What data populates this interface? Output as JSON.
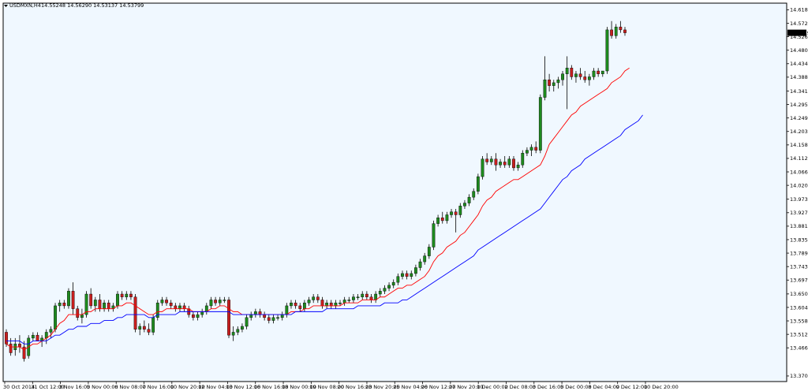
{
  "header": {
    "symbol": "USDMXN,H4",
    "ohlc": "14.55248 14.56290 14.53137 14.53799"
  },
  "current_price_label": "14.53799",
  "colors": {
    "background": "#f0f8ff",
    "frame": "#000000",
    "bull_candle": "#1e8a1e",
    "bear_candle": "#c81e1e",
    "wick": "#000000",
    "ma_fast": "#ff0000",
    "ma_slow": "#0000ff",
    "price_tag_bg": "#000000",
    "price_tag_fg": "#ffffff"
  },
  "chart_data": {
    "type": "candlestick",
    "title": "USDMXN,H4",
    "xlabel": "",
    "ylabel": "",
    "grid": false,
    "ylim": [
      13.352,
      14.641
    ],
    "y_ticks": [
      "14.61840",
      "14.57250",
      "14.52660",
      "14.48070",
      "14.43480",
      "14.38890",
      "14.34165",
      "14.29575",
      "14.24985",
      "14.20395",
      "14.15805",
      "14.11215",
      "14.06625",
      "14.02035",
      "13.97310",
      "13.92720",
      "13.88130",
      "13.83540",
      "13.78950",
      "13.74360",
      "13.69770",
      "13.65045",
      "13.60455",
      "13.55865",
      "13.51275",
      "13.46685",
      "13.37095"
    ],
    "x_labels": [
      "30 Oct 2014",
      "31 Oct 12:00",
      "3 Nov 16:00",
      "5 Nov 00:00",
      "6 Nov 08:00",
      "7 Nov 16:00",
      "10 Nov 20:00",
      "12 Nov 04:00",
      "13 Nov 12:00",
      "16 Nov 16:00",
      "18 Nov 00:00",
      "19 Nov 08:00",
      "20 Nov 16:00",
      "23 Nov 20:00",
      "25 Nov 04:00",
      "26 Nov 12:00",
      "27 Nov 20:00",
      "1 Dec 00:00",
      "2 Dec 08:00",
      "3 Dec 16:00",
      "5 Dec 00:00",
      "8 Dec 04:00",
      "9 Dec 12:00",
      "10 Dec 20:00"
    ],
    "candles": [
      [
        13.52,
        13.53,
        13.47,
        13.48
      ],
      [
        13.48,
        13.5,
        13.44,
        13.45
      ],
      [
        13.46,
        13.5,
        13.44,
        13.48
      ],
      [
        13.48,
        13.51,
        13.45,
        13.47
      ],
      [
        13.47,
        13.49,
        13.42,
        13.43
      ],
      [
        13.44,
        13.51,
        13.43,
        13.5
      ],
      [
        13.5,
        13.52,
        13.49,
        13.51
      ],
      [
        13.51,
        13.52,
        13.49,
        13.49
      ],
      [
        13.49,
        13.51,
        13.47,
        13.5
      ],
      [
        13.5,
        13.53,
        13.48,
        13.52
      ],
      [
        13.52,
        13.54,
        13.5,
        13.53
      ],
      [
        13.53,
        13.62,
        13.52,
        13.61
      ],
      [
        13.61,
        13.63,
        13.59,
        13.62
      ],
      [
        13.62,
        13.63,
        13.6,
        13.61
      ],
      [
        13.61,
        13.67,
        13.6,
        13.66
      ],
      [
        13.66,
        13.69,
        13.58,
        13.6
      ],
      [
        13.6,
        13.61,
        13.56,
        13.57
      ],
      [
        13.57,
        13.6,
        13.55,
        13.58
      ],
      [
        13.58,
        13.66,
        13.57,
        13.65
      ],
      [
        13.65,
        13.67,
        13.6,
        13.61
      ],
      [
        13.61,
        13.64,
        13.59,
        13.63
      ],
      [
        13.63,
        13.65,
        13.59,
        13.6
      ],
      [
        13.6,
        13.63,
        13.59,
        13.62
      ],
      [
        13.62,
        13.63,
        13.59,
        13.6
      ],
      [
        13.6,
        13.62,
        13.59,
        13.61
      ],
      [
        13.61,
        13.66,
        13.6,
        13.65
      ],
      [
        13.65,
        13.66,
        13.63,
        13.64
      ],
      [
        13.64,
        13.66,
        13.63,
        13.65
      ],
      [
        13.65,
        13.66,
        13.63,
        13.64
      ],
      [
        13.64,
        13.65,
        13.52,
        13.53
      ],
      [
        13.53,
        13.55,
        13.51,
        13.54
      ],
      [
        13.54,
        13.56,
        13.52,
        13.53
      ],
      [
        13.53,
        13.55,
        13.51,
        13.52
      ],
      [
        13.52,
        13.58,
        13.51,
        13.57
      ],
      [
        13.57,
        13.63,
        13.56,
        13.62
      ],
      [
        13.62,
        13.64,
        13.61,
        13.63
      ],
      [
        13.63,
        13.64,
        13.61,
        13.62
      ],
      [
        13.62,
        13.63,
        13.6,
        13.61
      ],
      [
        13.61,
        13.62,
        13.59,
        13.6
      ],
      [
        13.6,
        13.62,
        13.59,
        13.61
      ],
      [
        13.61,
        13.62,
        13.59,
        13.6
      ],
      [
        13.6,
        13.61,
        13.57,
        13.58
      ],
      [
        13.58,
        13.59,
        13.56,
        13.57
      ],
      [
        13.57,
        13.59,
        13.56,
        13.58
      ],
      [
        13.58,
        13.6,
        13.57,
        13.59
      ],
      [
        13.59,
        13.62,
        13.58,
        13.61
      ],
      [
        13.61,
        13.64,
        13.6,
        13.63
      ],
      [
        13.63,
        13.64,
        13.61,
        13.62
      ],
      [
        13.62,
        13.64,
        13.61,
        13.63
      ],
      [
        13.63,
        13.64,
        13.62,
        13.63
      ],
      [
        13.63,
        13.64,
        13.5,
        13.51
      ],
      [
        13.51,
        13.54,
        13.49,
        13.52
      ],
      [
        13.52,
        13.54,
        13.51,
        13.53
      ],
      [
        13.53,
        13.55,
        13.52,
        13.54
      ],
      [
        13.54,
        13.58,
        13.53,
        13.57
      ],
      [
        13.57,
        13.59,
        13.56,
        13.58
      ],
      [
        13.58,
        13.6,
        13.57,
        13.59
      ],
      [
        13.59,
        13.6,
        13.57,
        13.58
      ],
      [
        13.58,
        13.59,
        13.56,
        13.57
      ],
      [
        13.57,
        13.58,
        13.55,
        13.56
      ],
      [
        13.56,
        13.58,
        13.55,
        13.57
      ],
      [
        13.57,
        13.58,
        13.56,
        13.57
      ],
      [
        13.57,
        13.59,
        13.56,
        13.58
      ],
      [
        13.58,
        13.62,
        13.57,
        13.61
      ],
      [
        13.61,
        13.63,
        13.6,
        13.62
      ],
      [
        13.62,
        13.63,
        13.6,
        13.61
      ],
      [
        13.61,
        13.62,
        13.59,
        13.6
      ],
      [
        13.6,
        13.63,
        13.59,
        13.62
      ],
      [
        13.62,
        13.64,
        13.61,
        13.63
      ],
      [
        13.63,
        13.65,
        13.62,
        13.64
      ],
      [
        13.64,
        13.65,
        13.62,
        13.63
      ],
      [
        13.63,
        13.64,
        13.6,
        13.61
      ],
      [
        13.61,
        13.63,
        13.6,
        13.62
      ],
      [
        13.62,
        13.63,
        13.6,
        13.61
      ],
      [
        13.61,
        13.63,
        13.6,
        13.62
      ],
      [
        13.62,
        13.63,
        13.61,
        13.62
      ],
      [
        13.62,
        13.64,
        13.61,
        13.63
      ],
      [
        13.63,
        13.64,
        13.62,
        13.63
      ],
      [
        13.63,
        13.65,
        13.62,
        13.64
      ],
      [
        13.64,
        13.65,
        13.63,
        13.64
      ],
      [
        13.64,
        13.66,
        13.63,
        13.65
      ],
      [
        13.65,
        13.66,
        13.63,
        13.64
      ],
      [
        13.64,
        13.65,
        13.62,
        13.63
      ],
      [
        13.63,
        13.66,
        13.62,
        13.65
      ],
      [
        13.65,
        13.67,
        13.64,
        13.66
      ],
      [
        13.66,
        13.68,
        13.65,
        13.67
      ],
      [
        13.67,
        13.69,
        13.66,
        13.68
      ],
      [
        13.68,
        13.7,
        13.67,
        13.69
      ],
      [
        13.69,
        13.72,
        13.68,
        13.71
      ],
      [
        13.71,
        13.73,
        13.7,
        13.72
      ],
      [
        13.72,
        13.73,
        13.7,
        13.71
      ],
      [
        13.71,
        13.73,
        13.7,
        13.72
      ],
      [
        13.72,
        13.75,
        13.71,
        13.74
      ],
      [
        13.74,
        13.77,
        13.73,
        13.76
      ],
      [
        13.76,
        13.79,
        13.75,
        13.78
      ],
      [
        13.78,
        13.82,
        13.77,
        13.81
      ],
      [
        13.81,
        13.9,
        13.8,
        13.89
      ],
      [
        13.89,
        13.92,
        13.88,
        13.91
      ],
      [
        13.91,
        13.93,
        13.89,
        13.9
      ],
      [
        13.9,
        13.93,
        13.89,
        13.92
      ],
      [
        13.92,
        13.94,
        13.91,
        13.93
      ],
      [
        13.93,
        13.94,
        13.86,
        13.92
      ],
      [
        13.92,
        13.96,
        13.91,
        13.95
      ],
      [
        13.95,
        13.97,
        13.94,
        13.96
      ],
      [
        13.96,
        13.99,
        13.95,
        13.98
      ],
      [
        13.98,
        14.01,
        13.97,
        14.0
      ],
      [
        14.0,
        14.06,
        13.99,
        14.05
      ],
      [
        14.05,
        14.12,
        14.04,
        14.11
      ],
      [
        14.11,
        14.13,
        14.09,
        14.1
      ],
      [
        14.1,
        14.12,
        14.09,
        14.11
      ],
      [
        14.11,
        14.13,
        14.07,
        14.09
      ],
      [
        14.09,
        14.11,
        14.08,
        14.1
      ],
      [
        14.1,
        14.12,
        14.08,
        14.09
      ],
      [
        14.09,
        14.12,
        14.08,
        14.11
      ],
      [
        14.11,
        14.12,
        14.07,
        14.08
      ],
      [
        14.08,
        14.1,
        14.07,
        14.09
      ],
      [
        14.09,
        14.14,
        14.08,
        14.13
      ],
      [
        14.13,
        14.15,
        14.12,
        14.14
      ],
      [
        14.14,
        14.16,
        14.12,
        14.15
      ],
      [
        14.15,
        14.17,
        14.13,
        14.14
      ],
      [
        14.14,
        14.33,
        14.13,
        14.32
      ],
      [
        14.32,
        14.46,
        14.31,
        14.38
      ],
      [
        14.38,
        14.4,
        14.34,
        14.36
      ],
      [
        14.36,
        14.38,
        14.34,
        14.37
      ],
      [
        14.37,
        14.39,
        14.35,
        14.38
      ],
      [
        14.38,
        14.41,
        14.36,
        14.4
      ],
      [
        14.4,
        14.46,
        14.28,
        14.42
      ],
      [
        14.42,
        14.43,
        14.38,
        14.39
      ],
      [
        14.39,
        14.41,
        14.37,
        14.4
      ],
      [
        14.4,
        14.42,
        14.38,
        14.39
      ],
      [
        14.39,
        14.41,
        14.37,
        14.38
      ],
      [
        14.38,
        14.4,
        14.36,
        14.39
      ],
      [
        14.39,
        14.42,
        14.38,
        14.41
      ],
      [
        14.41,
        14.42,
        14.39,
        14.4
      ],
      [
        14.4,
        14.41,
        14.39,
        14.41
      ],
      [
        14.41,
        14.56,
        14.4,
        14.55
      ],
      [
        14.55,
        14.58,
        14.52,
        14.53
      ],
      [
        14.53,
        14.57,
        14.52,
        14.56
      ],
      [
        14.56,
        14.58,
        14.54,
        14.55
      ],
      [
        14.55,
        14.56,
        14.53,
        14.54
      ]
    ],
    "series": [
      {
        "type": "line",
        "values": [
          13.48,
          13.47,
          13.47,
          13.47,
          13.46,
          13.47,
          13.48,
          13.48,
          13.49,
          13.5,
          13.51,
          13.53,
          13.55,
          13.56,
          13.58,
          13.58,
          13.58,
          13.58,
          13.59,
          13.59,
          13.6,
          13.6,
          13.6,
          13.6,
          13.6,
          13.61,
          13.61,
          13.62,
          13.62,
          13.61,
          13.6,
          13.59,
          13.58,
          13.58,
          13.59,
          13.59,
          13.6,
          13.6,
          13.6,
          13.6,
          13.6,
          13.6,
          13.59,
          13.59,
          13.59,
          13.59,
          13.6,
          13.6,
          13.61,
          13.61,
          13.6,
          13.59,
          13.59,
          13.58,
          13.58,
          13.58,
          13.58,
          13.58,
          13.58,
          13.58,
          13.58,
          13.58,
          13.58,
          13.58,
          13.59,
          13.59,
          13.59,
          13.6,
          13.6,
          13.61,
          13.61,
          13.61,
          13.61,
          13.61,
          13.61,
          13.61,
          13.62,
          13.62,
          13.62,
          13.62,
          13.63,
          13.63,
          13.63,
          13.63,
          13.64,
          13.64,
          13.65,
          13.66,
          13.67,
          13.67,
          13.68,
          13.68,
          13.69,
          13.7,
          13.71,
          13.73,
          13.76,
          13.78,
          13.79,
          13.81,
          13.82,
          13.83,
          13.85,
          13.86,
          13.88,
          13.9,
          13.92,
          13.95,
          13.97,
          13.98,
          14.0,
          14.01,
          14.02,
          14.03,
          14.04,
          14.04,
          14.05,
          14.06,
          14.07,
          14.08,
          14.09,
          14.12,
          14.16,
          14.18,
          14.2,
          14.22,
          14.24,
          14.26,
          14.27,
          14.29,
          14.3,
          14.31,
          14.32,
          14.33,
          14.34,
          14.35,
          14.37,
          14.38,
          14.39,
          14.41,
          14.42
        ]
      },
      {
        "type": "line",
        "values": [
          13.49,
          13.49,
          13.49,
          13.49,
          13.48,
          13.48,
          13.49,
          13.49,
          13.49,
          13.49,
          13.5,
          13.51,
          13.51,
          13.52,
          13.53,
          13.53,
          13.54,
          13.54,
          13.54,
          13.55,
          13.55,
          13.55,
          13.56,
          13.56,
          13.56,
          13.57,
          13.57,
          13.58,
          13.58,
          13.58,
          13.58,
          13.58,
          13.57,
          13.57,
          13.58,
          13.58,
          13.58,
          13.58,
          13.58,
          13.59,
          13.59,
          13.59,
          13.59,
          13.59,
          13.59,
          13.59,
          13.59,
          13.59,
          13.59,
          13.59,
          13.59,
          13.58,
          13.58,
          13.58,
          13.58,
          13.58,
          13.58,
          13.58,
          13.58,
          13.58,
          13.58,
          13.58,
          13.58,
          13.58,
          13.58,
          13.59,
          13.59,
          13.59,
          13.59,
          13.59,
          13.59,
          13.59,
          13.6,
          13.6,
          13.6,
          13.6,
          13.6,
          13.6,
          13.6,
          13.61,
          13.61,
          13.61,
          13.61,
          13.61,
          13.61,
          13.62,
          13.62,
          13.62,
          13.62,
          13.63,
          13.63,
          13.64,
          13.65,
          13.66,
          13.67,
          13.68,
          13.69,
          13.7,
          13.71,
          13.72,
          13.73,
          13.74,
          13.75,
          13.76,
          13.77,
          13.78,
          13.8,
          13.81,
          13.82,
          13.83,
          13.84,
          13.85,
          13.86,
          13.87,
          13.88,
          13.89,
          13.9,
          13.91,
          13.92,
          13.93,
          13.94,
          13.96,
          13.98,
          14.0,
          14.02,
          14.04,
          14.05,
          14.07,
          14.08,
          14.09,
          14.11,
          14.12,
          14.13,
          14.14,
          14.15,
          14.16,
          14.17,
          14.18,
          14.19,
          14.21,
          14.22,
          14.23,
          14.24,
          14.26
        ]
      }
    ]
  }
}
